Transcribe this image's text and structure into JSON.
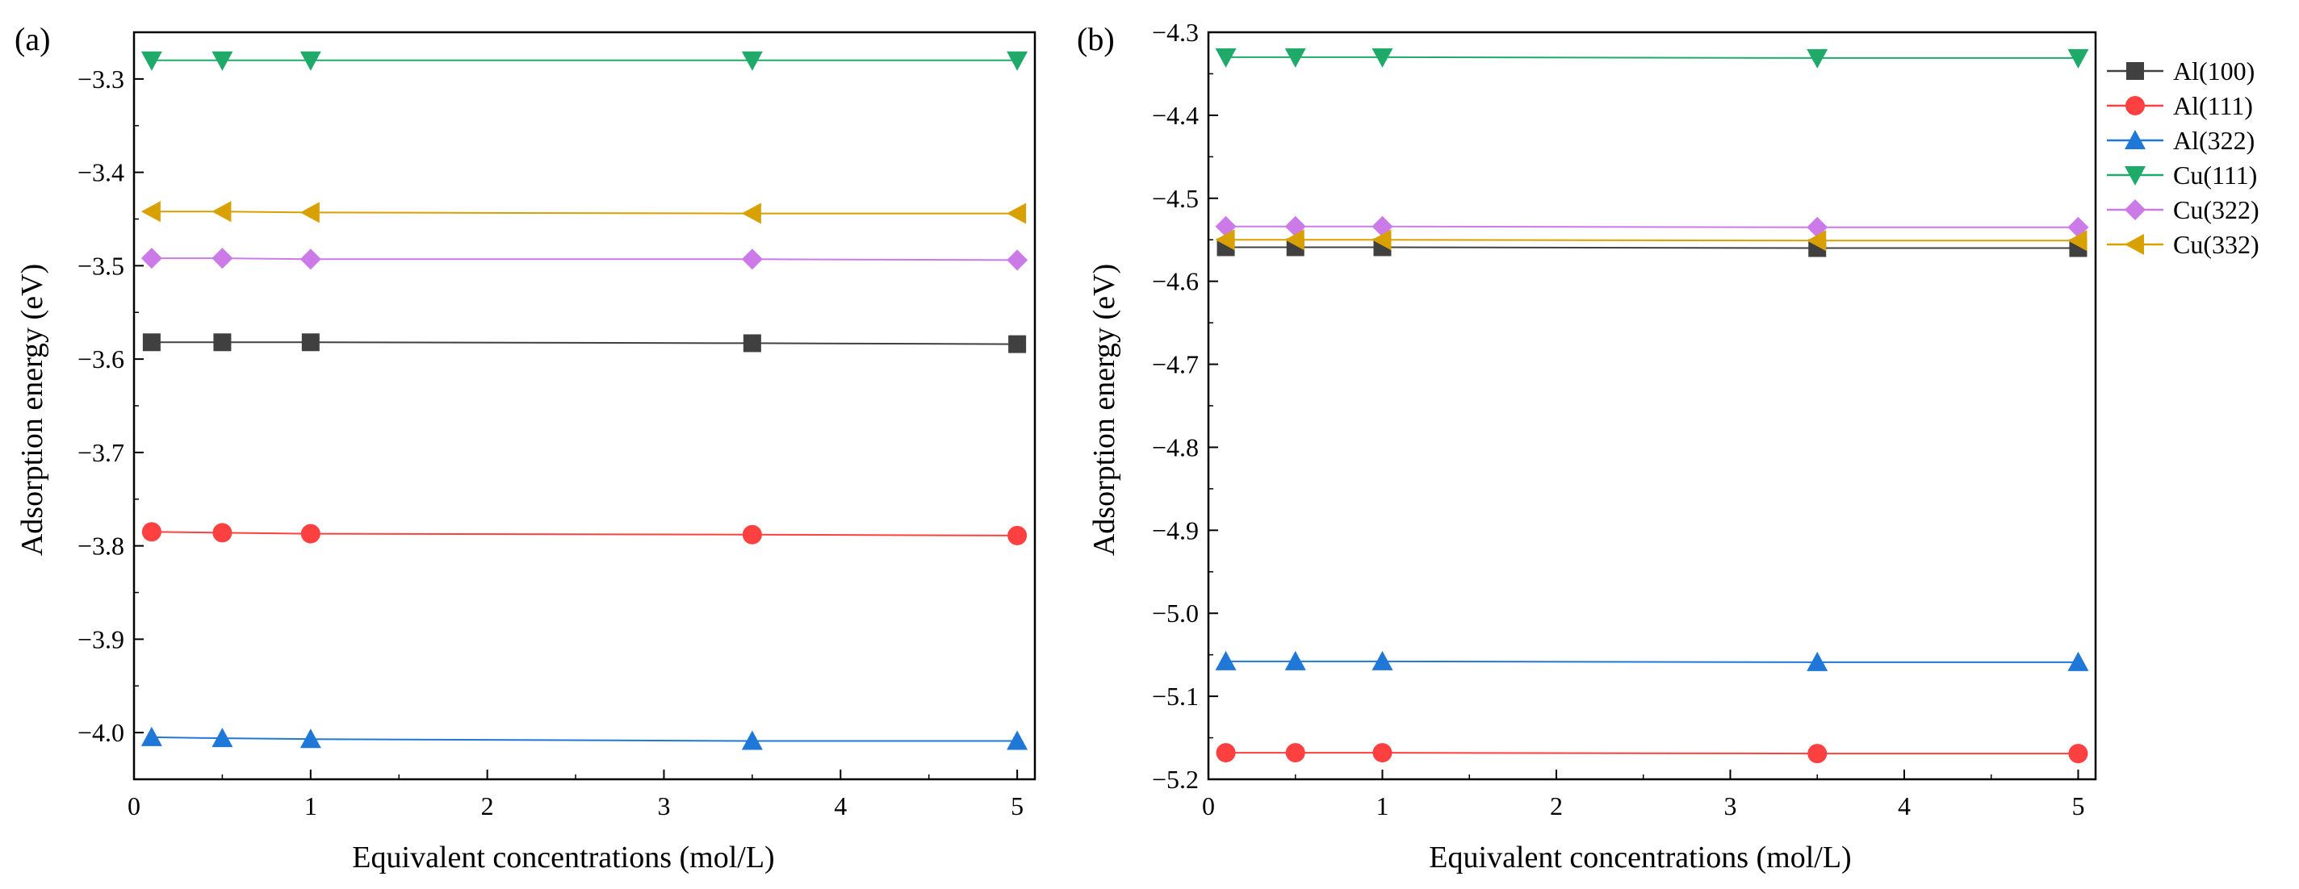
{
  "chart_data": [
    {
      "type": "line",
      "panel_label": "(a)",
      "xlabel": "Equivalent concentrations (mol/L)",
      "ylabel": "Adsorption energy (eV)",
      "xlim": [
        0,
        5.1
      ],
      "ylim": [
        -4.05,
        -3.25
      ],
      "xticks": [
        0,
        1,
        2,
        3,
        4,
        5
      ],
      "yticks": [
        -3.3,
        -3.4,
        -3.5,
        -3.6,
        -3.7,
        -3.8,
        -3.9,
        -4.0
      ],
      "xtick_labels": [
        "0",
        "1",
        "2",
        "3",
        "4",
        "5"
      ],
      "ytick_labels": [
        "−3.3",
        "−3.4",
        "−3.5",
        "−3.6",
        "−3.7",
        "−3.8",
        "−3.9",
        "−4.0"
      ],
      "x": [
        0.1,
        0.5,
        1,
        3.5,
        5
      ],
      "series": [
        {
          "name": "Al(100)",
          "color": "#404040",
          "marker": "square",
          "values": [
            -3.582,
            -3.582,
            -3.582,
            -3.583,
            -3.584
          ]
        },
        {
          "name": "Al(111)",
          "color": "#ff4040",
          "marker": "circle",
          "values": [
            -3.785,
            -3.786,
            -3.787,
            -3.788,
            -3.789
          ]
        },
        {
          "name": "Al(322)",
          "color": "#1f78d8",
          "marker": "triangle-up",
          "values": [
            -4.005,
            -4.006,
            -4.007,
            -4.009,
            -4.009
          ]
        },
        {
          "name": "Cu(111)",
          "color": "#1faa6a",
          "marker": "triangle-down",
          "values": [
            -3.28,
            -3.28,
            -3.28,
            -3.28,
            -3.28
          ]
        },
        {
          "name": "Cu(322)",
          "color": "#cc7ae8",
          "marker": "diamond",
          "values": [
            -3.492,
            -3.492,
            -3.493,
            -3.493,
            -3.494
          ]
        },
        {
          "name": "Cu(332)",
          "color": "#d8a000",
          "marker": "triangle-left",
          "values": [
            -3.442,
            -3.442,
            -3.443,
            -3.444,
            -3.444
          ]
        }
      ]
    },
    {
      "type": "line",
      "panel_label": "(b)",
      "xlabel": "Equivalent concentrations (mol/L)",
      "ylabel": "Adsorption energy (eV)",
      "xlim": [
        0,
        5.1
      ],
      "ylim": [
        -5.2,
        -4.3
      ],
      "xticks": [
        0,
        1,
        2,
        3,
        4,
        5
      ],
      "yticks": [
        -4.3,
        -4.4,
        -4.5,
        -4.6,
        -4.7,
        -4.8,
        -4.9,
        -5.0,
        -5.1,
        -5.2
      ],
      "xtick_labels": [
        "0",
        "1",
        "2",
        "3",
        "4",
        "5"
      ],
      "ytick_labels": [
        "−4.3",
        "−4.4",
        "−4.5",
        "−4.6",
        "−4.7",
        "−4.8",
        "−4.9",
        "−5.0",
        "−5.1",
        "−5.2"
      ],
      "x": [
        0.1,
        0.5,
        1,
        3.5,
        5
      ],
      "series": [
        {
          "name": "Al(100)",
          "color": "#404040",
          "marker": "square",
          "values": [
            -4.559,
            -4.559,
            -4.559,
            -4.56,
            -4.56
          ]
        },
        {
          "name": "Al(111)",
          "color": "#ff4040",
          "marker": "circle",
          "values": [
            -5.168,
            -5.168,
            -5.168,
            -5.169,
            -5.169
          ]
        },
        {
          "name": "Al(322)",
          "color": "#1f78d8",
          "marker": "triangle-up",
          "values": [
            -5.058,
            -5.058,
            -5.058,
            -5.059,
            -5.059
          ]
        },
        {
          "name": "Cu(111)",
          "color": "#1faa6a",
          "marker": "triangle-down",
          "values": [
            -4.33,
            -4.33,
            -4.33,
            -4.331,
            -4.331
          ]
        },
        {
          "name": "Cu(322)",
          "color": "#cc7ae8",
          "marker": "diamond",
          "values": [
            -4.534,
            -4.534,
            -4.534,
            -4.535,
            -4.535
          ]
        },
        {
          "name": "Cu(332)",
          "color": "#d8a000",
          "marker": "triangle-left",
          "values": [
            -4.55,
            -4.55,
            -4.55,
            -4.551,
            -4.551
          ]
        }
      ],
      "legend_position": "outside-right"
    }
  ]
}
